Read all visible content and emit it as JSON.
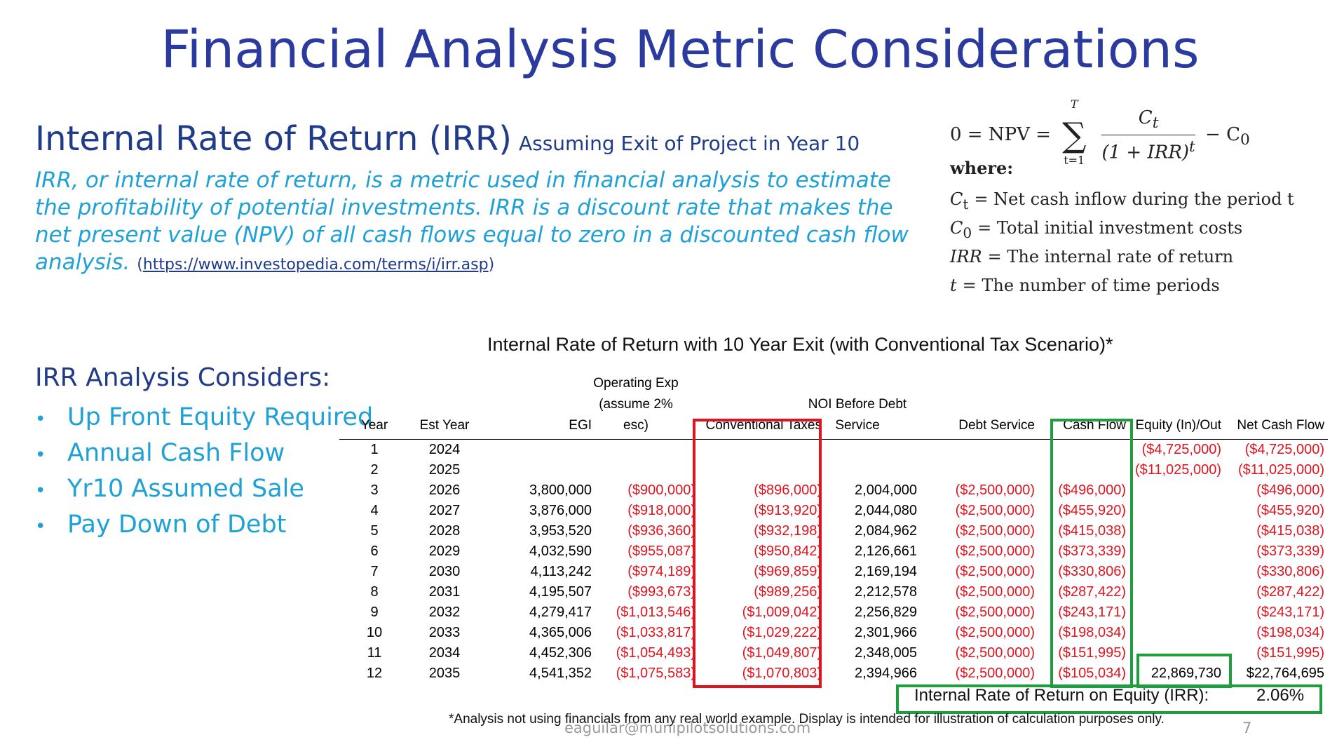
{
  "slide": {
    "title": "Financial Analysis Metric Considerations",
    "irr_heading": "Internal Rate of Return (IRR)",
    "irr_subheading": "Assuming Exit of Project in Year 10",
    "irr_description": "IRR, or internal rate of return, is a metric used in financial analysis to estimate the profitability of potential investments. IRR is a discount rate that makes the net present value (NPV) of all cash flows equal to zero in a discounted cash flow analysis.",
    "irr_source_open": "(",
    "irr_source_link": "https://www.investopedia.com/terms/i/irr.asp",
    "irr_source_close": ")",
    "considers_heading": "IRR Analysis Considers:",
    "considers_items": [
      "Up Front Equity Required",
      "Annual Cash Flow",
      "Yr10 Assumed Sale",
      "Pay Down of Debt"
    ],
    "bullet": "•",
    "footnote": "*Analysis not using financials from any real world example. Display is intended for illustration of calculation purposes only.",
    "email": "eaguilar@munipilotsolutions.com",
    "page_number": "7"
  },
  "formula": {
    "lhs": "0 = NPV =",
    "sigma_top": "T",
    "sigma_symbol": "∑",
    "sigma_bottom": "t=1",
    "numerator": "C",
    "numerator_sub": "t",
    "denominator": "(1 + IRR)",
    "denominator_sup": "t",
    "rhs": "− C",
    "rhs_sub": "0",
    "where_label": "where:",
    "definitions": [
      {
        "sym": "C",
        "sub": "t",
        "text": "= Net cash inflow during the period t"
      },
      {
        "sym": "C",
        "sub": "0",
        "text": "= Total initial investment costs"
      },
      {
        "sym": "IRR",
        "sub": "",
        "text": "= The internal rate of return"
      },
      {
        "sym": "t",
        "sub": "",
        "text": "= The number of time periods"
      }
    ]
  },
  "table": {
    "title": "Internal Rate of Return with 10 Year Exit (with Conventional Tax Scenario)*",
    "headers": [
      [
        "Year"
      ],
      [
        "Est Year"
      ],
      [
        "EGI"
      ],
      [
        "Operating Exp",
        "(assume 2%",
        "esc)"
      ],
      [
        "Conventional Taxes"
      ],
      [
        "NOI Before Debt",
        "Service"
      ],
      [
        "Debt Service"
      ],
      [
        "Cash Flow"
      ],
      [
        "Equity (In)/Out"
      ],
      [
        "Net Cash Flow"
      ]
    ],
    "rows": [
      [
        "1",
        "2024",
        "",
        "",
        "",
        "",
        "",
        "",
        "($4,725,000)",
        "($4,725,000)"
      ],
      [
        "2",
        "2025",
        "",
        "",
        "",
        "",
        "",
        "",
        "($11,025,000)",
        "($11,025,000)"
      ],
      [
        "3",
        "2026",
        "3,800,000",
        "($900,000)",
        "($896,000)",
        "2,004,000",
        "($2,500,000)",
        "($496,000)",
        "",
        "($496,000)"
      ],
      [
        "4",
        "2027",
        "3,876,000",
        "($918,000)",
        "($913,920)",
        "2,044,080",
        "($2,500,000)",
        "($455,920)",
        "",
        "($455,920)"
      ],
      [
        "5",
        "2028",
        "3,953,520",
        "($936,360)",
        "($932,198)",
        "2,084,962",
        "($2,500,000)",
        "($415,038)",
        "",
        "($415,038)"
      ],
      [
        "6",
        "2029",
        "4,032,590",
        "($955,087)",
        "($950,842)",
        "2,126,661",
        "($2,500,000)",
        "($373,339)",
        "",
        "($373,339)"
      ],
      [
        "7",
        "2030",
        "4,113,242",
        "($974,189)",
        "($969,859)",
        "2,169,194",
        "($2,500,000)",
        "($330,806)",
        "",
        "($330,806)"
      ],
      [
        "8",
        "2031",
        "4,195,507",
        "($993,673)",
        "($989,256)",
        "2,212,578",
        "($2,500,000)",
        "($287,422)",
        "",
        "($287,422)"
      ],
      [
        "9",
        "2032",
        "4,279,417",
        "($1,013,546)",
        "($1,009,042)",
        "2,256,829",
        "($2,500,000)",
        "($243,171)",
        "",
        "($243,171)"
      ],
      [
        "10",
        "2033",
        "4,365,006",
        "($1,033,817)",
        "($1,029,222)",
        "2,301,966",
        "($2,500,000)",
        "($198,034)",
        "",
        "($198,034)"
      ],
      [
        "11",
        "2034",
        "4,452,306",
        "($1,054,493)",
        "($1,049,807)",
        "2,348,005",
        "($2,500,000)",
        "($151,995)",
        "",
        "($151,995)"
      ],
      [
        "12",
        "2035",
        "4,541,352",
        "($1,075,583)",
        "($1,070,803)",
        "2,394,966",
        "($2,500,000)",
        "($105,034)",
        "22,869,730",
        "$22,764,695"
      ]
    ],
    "irr_label": "Internal Rate of Return on Equity (IRR):",
    "irr_value": "2.06%"
  },
  "colors": {
    "title": "#2a3a9e",
    "accent_text": "#1fa1d8",
    "negative": "#e0141e",
    "highlight_red": "#e0141e",
    "highlight_green": "#1e9e3c"
  }
}
